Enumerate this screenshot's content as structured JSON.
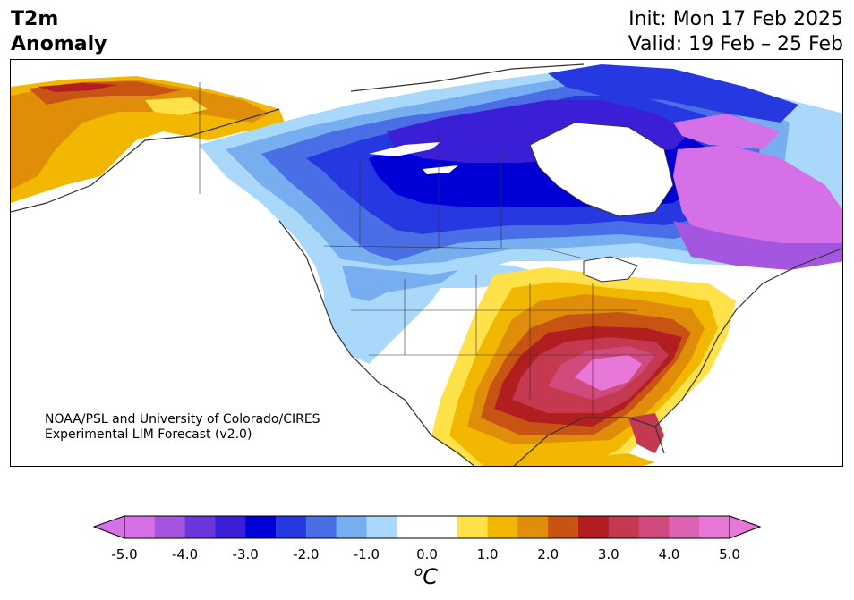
{
  "header": {
    "title_line1": "T2m",
    "title_line2": "Anomaly",
    "init": "Init: Mon 17 Feb 2025",
    "valid": "Valid: 19 Feb – 25 Feb"
  },
  "credit": {
    "line1": "NOAA/PSL and University of Colorado/CIRES",
    "line2": "Experimental LIM Forecast (v2.0)"
  },
  "colorbar": {
    "unit_base": "C",
    "unit_sup": "o",
    "tick_labels": [
      "-5.0",
      "-4.0",
      "-3.0",
      "-2.0",
      "-1.0",
      "0.0",
      "1.0",
      "2.0",
      "3.0",
      "4.0",
      "5.0"
    ],
    "colors": [
      "#d670e8",
      "#a456e0",
      "#6a36dd",
      "#3a1fd6",
      "#0000d6",
      "#2638e0",
      "#4a6ee6",
      "#76aef0",
      "#aad8fa",
      "#ffffff",
      "#ffffff",
      "#ffe24a",
      "#f2b700",
      "#e08e0a",
      "#c85414",
      "#b21e20",
      "#c43850",
      "#d04a7e",
      "#dc62b2",
      "#e878d8"
    ]
  },
  "legend_colors": {
    "ocean": "#ffffff",
    "coast": "#333333"
  }
}
